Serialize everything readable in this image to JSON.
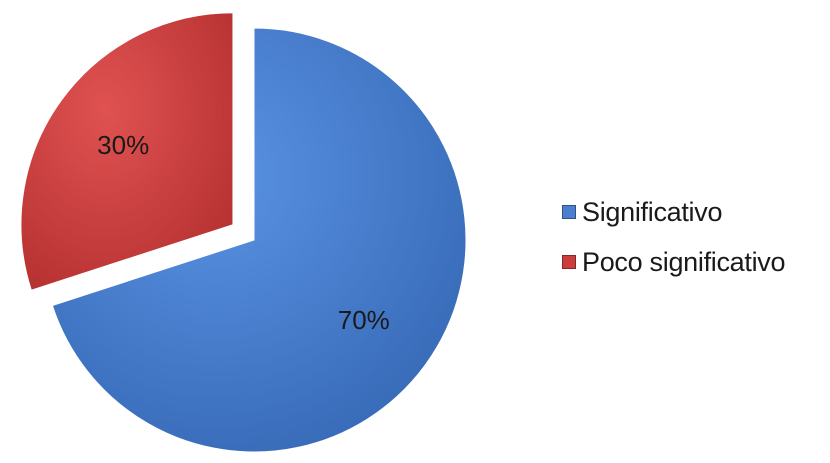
{
  "chart_data": {
    "type": "pie",
    "title": "",
    "slices": [
      {
        "label": "Significativo",
        "value": 70,
        "value_label": "70%",
        "color": "#4a7fd0"
      },
      {
        "label": "Poco significativo",
        "value": 30,
        "value_label": "30%",
        "color": "#cc3d3d"
      }
    ],
    "exploded_slice": "Poco significativo",
    "legend_position": "right"
  }
}
